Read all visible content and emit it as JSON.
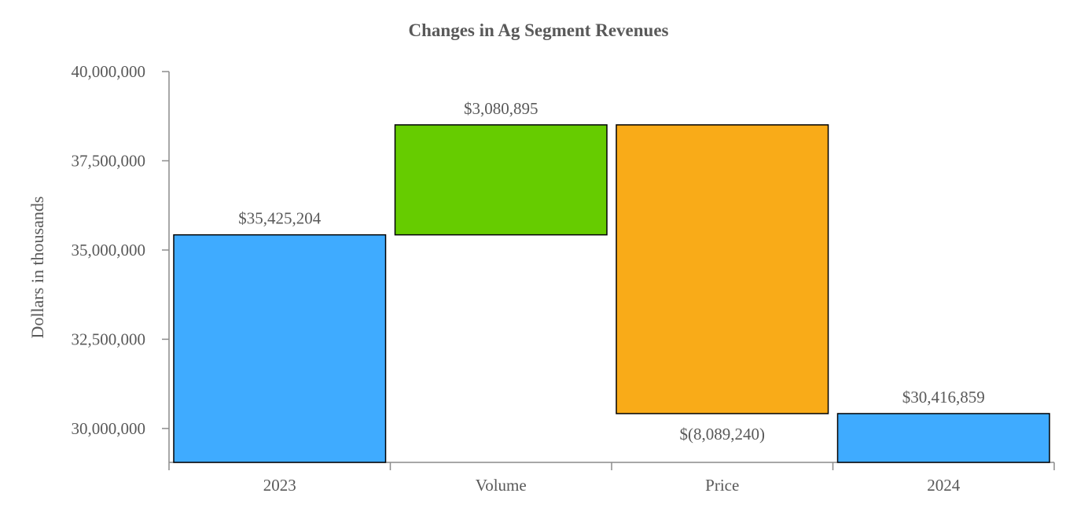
{
  "chart_data": {
    "type": "bar",
    "subtype": "waterfall",
    "title": "Changes in Ag Segment Revenues",
    "xlabel": "",
    "ylabel": "Dollars in thousands",
    "ylim": [
      29050000,
      40000000
    ],
    "yticks": [
      30000000,
      32500000,
      35000000,
      37500000,
      40000000
    ],
    "ytick_labels": [
      "30,000,000",
      "32,500,000",
      "35,000,000",
      "37,500,000",
      "40,000,000"
    ],
    "categories": [
      "2023",
      "Volume",
      "Price",
      "2024"
    ],
    "bars": [
      {
        "category": "2023",
        "kind": "total",
        "start": 0,
        "end": 35425204,
        "label": "$35,425,204",
        "label_position": "above",
        "color": "#3fabff"
      },
      {
        "category": "Volume",
        "kind": "increase",
        "start": 35425204,
        "end": 38506099,
        "label": "$3,080,895",
        "label_position": "above",
        "color": "#66cc00"
      },
      {
        "category": "Price",
        "kind": "decrease",
        "start": 38506099,
        "end": 30416859,
        "label": "$(8,089,240)",
        "label_position": "below",
        "color": "#f9ab18"
      },
      {
        "category": "2024",
        "kind": "total",
        "start": 0,
        "end": 30416859,
        "label": "$30,416,859",
        "label_position": "above",
        "color": "#3fabff"
      }
    ],
    "grid": false,
    "legend": "none"
  }
}
